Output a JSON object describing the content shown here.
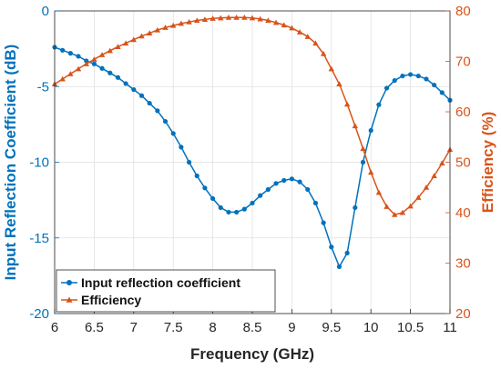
{
  "chart_data": {
    "type": "line",
    "xlabel": "Frequency (GHz)",
    "ylabel_left": "Input Reflection Coefficient (dB)",
    "ylabel_right": "Efficiency (%)",
    "xlim": [
      6,
      11
    ],
    "ylim_left": [
      -20,
      0
    ],
    "ylim_right": [
      20,
      80
    ],
    "x_ticks": [
      "6",
      "6.5",
      "7",
      "7.5",
      "8",
      "8.5",
      "9",
      "9.5",
      "10",
      "10.5",
      "11"
    ],
    "y_left_ticks": [
      "0",
      "-5",
      "-10",
      "-15",
      "-20"
    ],
    "y_right_ticks": [
      "80",
      "70",
      "60",
      "50",
      "40",
      "30",
      "20"
    ],
    "grid": true,
    "legend_position": "bottom-left",
    "colors": {
      "left_axis": "#0072BD",
      "right_axis": "#D95319"
    },
    "series": [
      {
        "name": "Input reflection coefficient",
        "axis": "left",
        "marker": "circle",
        "x": [
          6.0,
          6.1,
          6.2,
          6.3,
          6.4,
          6.5,
          6.6,
          6.7,
          6.8,
          6.9,
          7.0,
          7.1,
          7.2,
          7.3,
          7.4,
          7.5,
          7.6,
          7.7,
          7.8,
          7.9,
          8.0,
          8.1,
          8.2,
          8.3,
          8.4,
          8.5,
          8.6,
          8.7,
          8.8,
          8.9,
          9.0,
          9.1,
          9.2,
          9.3,
          9.4,
          9.5,
          9.6,
          9.7,
          9.8,
          9.9,
          10.0,
          10.1,
          10.2,
          10.3,
          10.4,
          10.5,
          10.6,
          10.7,
          10.8,
          10.9,
          11.0
        ],
        "y": [
          -2.4,
          -2.6,
          -2.8,
          -3.0,
          -3.3,
          -3.5,
          -3.8,
          -4.1,
          -4.4,
          -4.8,
          -5.2,
          -5.6,
          -6.1,
          -6.6,
          -7.3,
          -8.1,
          -9.0,
          -10.0,
          -10.9,
          -11.7,
          -12.4,
          -13.0,
          -13.3,
          -13.3,
          -13.1,
          -12.7,
          -12.2,
          -11.8,
          -11.4,
          -11.2,
          -11.1,
          -11.3,
          -11.8,
          -12.7,
          -14.0,
          -15.6,
          -16.9,
          -16.0,
          -13.0,
          -10.0,
          -7.9,
          -6.2,
          -5.1,
          -4.6,
          -4.3,
          -4.2,
          -4.3,
          -4.5,
          -4.9,
          -5.4,
          -5.9
        ]
      },
      {
        "name": "Efficiency",
        "axis": "right",
        "marker": "triangle",
        "x": [
          6.0,
          6.1,
          6.2,
          6.3,
          6.4,
          6.5,
          6.6,
          6.7,
          6.8,
          6.9,
          7.0,
          7.1,
          7.2,
          7.3,
          7.4,
          7.5,
          7.6,
          7.7,
          7.8,
          7.9,
          8.0,
          8.1,
          8.2,
          8.3,
          8.4,
          8.5,
          8.6,
          8.7,
          8.8,
          8.9,
          9.0,
          9.1,
          9.2,
          9.3,
          9.4,
          9.5,
          9.6,
          9.7,
          9.8,
          9.9,
          10.0,
          10.1,
          10.2,
          10.3,
          10.4,
          10.5,
          10.6,
          10.7,
          10.8,
          10.9,
          11.0
        ],
        "y": [
          65.5,
          66.5,
          67.5,
          68.5,
          69.5,
          70.4,
          71.3,
          72.1,
          72.9,
          73.6,
          74.3,
          75.0,
          75.6,
          76.2,
          76.7,
          77.1,
          77.5,
          77.8,
          78.1,
          78.3,
          78.5,
          78.6,
          78.7,
          78.7,
          78.7,
          78.6,
          78.4,
          78.1,
          77.7,
          77.2,
          76.6,
          75.8,
          74.9,
          73.6,
          71.5,
          68.5,
          65.5,
          61.5,
          57.2,
          52.7,
          48.0,
          44.0,
          41.2,
          39.6,
          40.0,
          41.3,
          43.0,
          45.0,
          47.3,
          49.8,
          52.5
        ]
      }
    ]
  }
}
